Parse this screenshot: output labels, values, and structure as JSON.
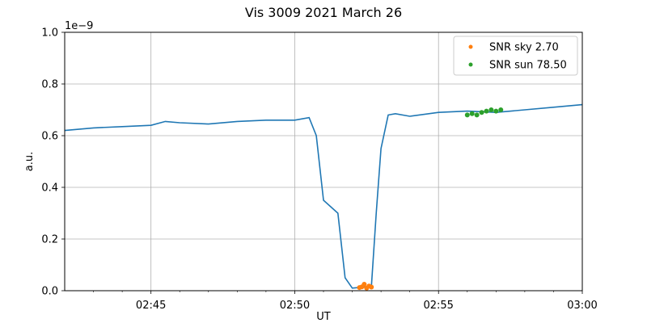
{
  "chart_data": {
    "type": "line",
    "title": "Vis 3009 2021 March 26",
    "xlabel": "UT",
    "ylabel": "a.u.",
    "y_scale_label": "1e−9",
    "xlim": [
      "02:42",
      "03:00"
    ],
    "ylim": [
      0,
      1.0
    ],
    "x_ticks": [
      "02:45",
      "02:50",
      "02:55",
      "03:00"
    ],
    "x_minor_ticks": [
      "02:43",
      "02:44",
      "02:46",
      "02:47",
      "02:48",
      "02:49",
      "02:51",
      "02:52",
      "02:53",
      "02:54",
      "02:56",
      "02:57",
      "02:58",
      "02:59"
    ],
    "y_ticks": [
      "0.0",
      "0.2",
      "0.4",
      "0.6",
      "0.8",
      "1.0"
    ],
    "grid": true,
    "legend_position": "top-right",
    "series": [
      {
        "name": "",
        "style": "line",
        "color": "#1f77b4",
        "x": [
          "02:42:00",
          "02:43:00",
          "02:44:00",
          "02:45:00",
          "02:45:30",
          "02:46:00",
          "02:47:00",
          "02:48:00",
          "02:49:00",
          "02:50:00",
          "02:50:30",
          "02:50:45",
          "02:51:00",
          "02:51:15",
          "02:51:30",
          "02:51:45",
          "02:52:00",
          "02:52:30",
          "02:52:40",
          "02:52:50",
          "02:53:00",
          "02:53:15",
          "02:53:30",
          "02:54:00",
          "02:55:00",
          "02:56:00",
          "02:57:00",
          "02:58:00",
          "02:59:00",
          "03:00:00"
        ],
        "y": [
          0.62,
          0.63,
          0.635,
          0.64,
          0.655,
          0.65,
          0.645,
          0.655,
          0.66,
          0.66,
          0.67,
          0.6,
          0.35,
          0.325,
          0.3,
          0.05,
          0.01,
          0.015,
          0.02,
          0.3,
          0.55,
          0.68,
          0.685,
          0.675,
          0.69,
          0.695,
          0.69,
          0.7,
          0.71,
          0.72
        ]
      },
      {
        "name": "SNR sky 2.70",
        "style": "scatter",
        "color": "#ff7f0e",
        "x": [
          "02:52:15",
          "02:52:20",
          "02:52:25",
          "02:52:30",
          "02:52:35",
          "02:52:40"
        ],
        "y": [
          0.012,
          0.015,
          0.025,
          0.01,
          0.018,
          0.014
        ]
      },
      {
        "name": "SNR sun 78.50",
        "style": "scatter",
        "color": "#2ca02c",
        "x": [
          "02:56:00",
          "02:56:10",
          "02:56:20",
          "02:56:30",
          "02:56:40",
          "02:56:50",
          "02:57:00",
          "02:57:10"
        ],
        "y": [
          0.68,
          0.685,
          0.68,
          0.69,
          0.695,
          0.7,
          0.695,
          0.7
        ]
      }
    ]
  }
}
